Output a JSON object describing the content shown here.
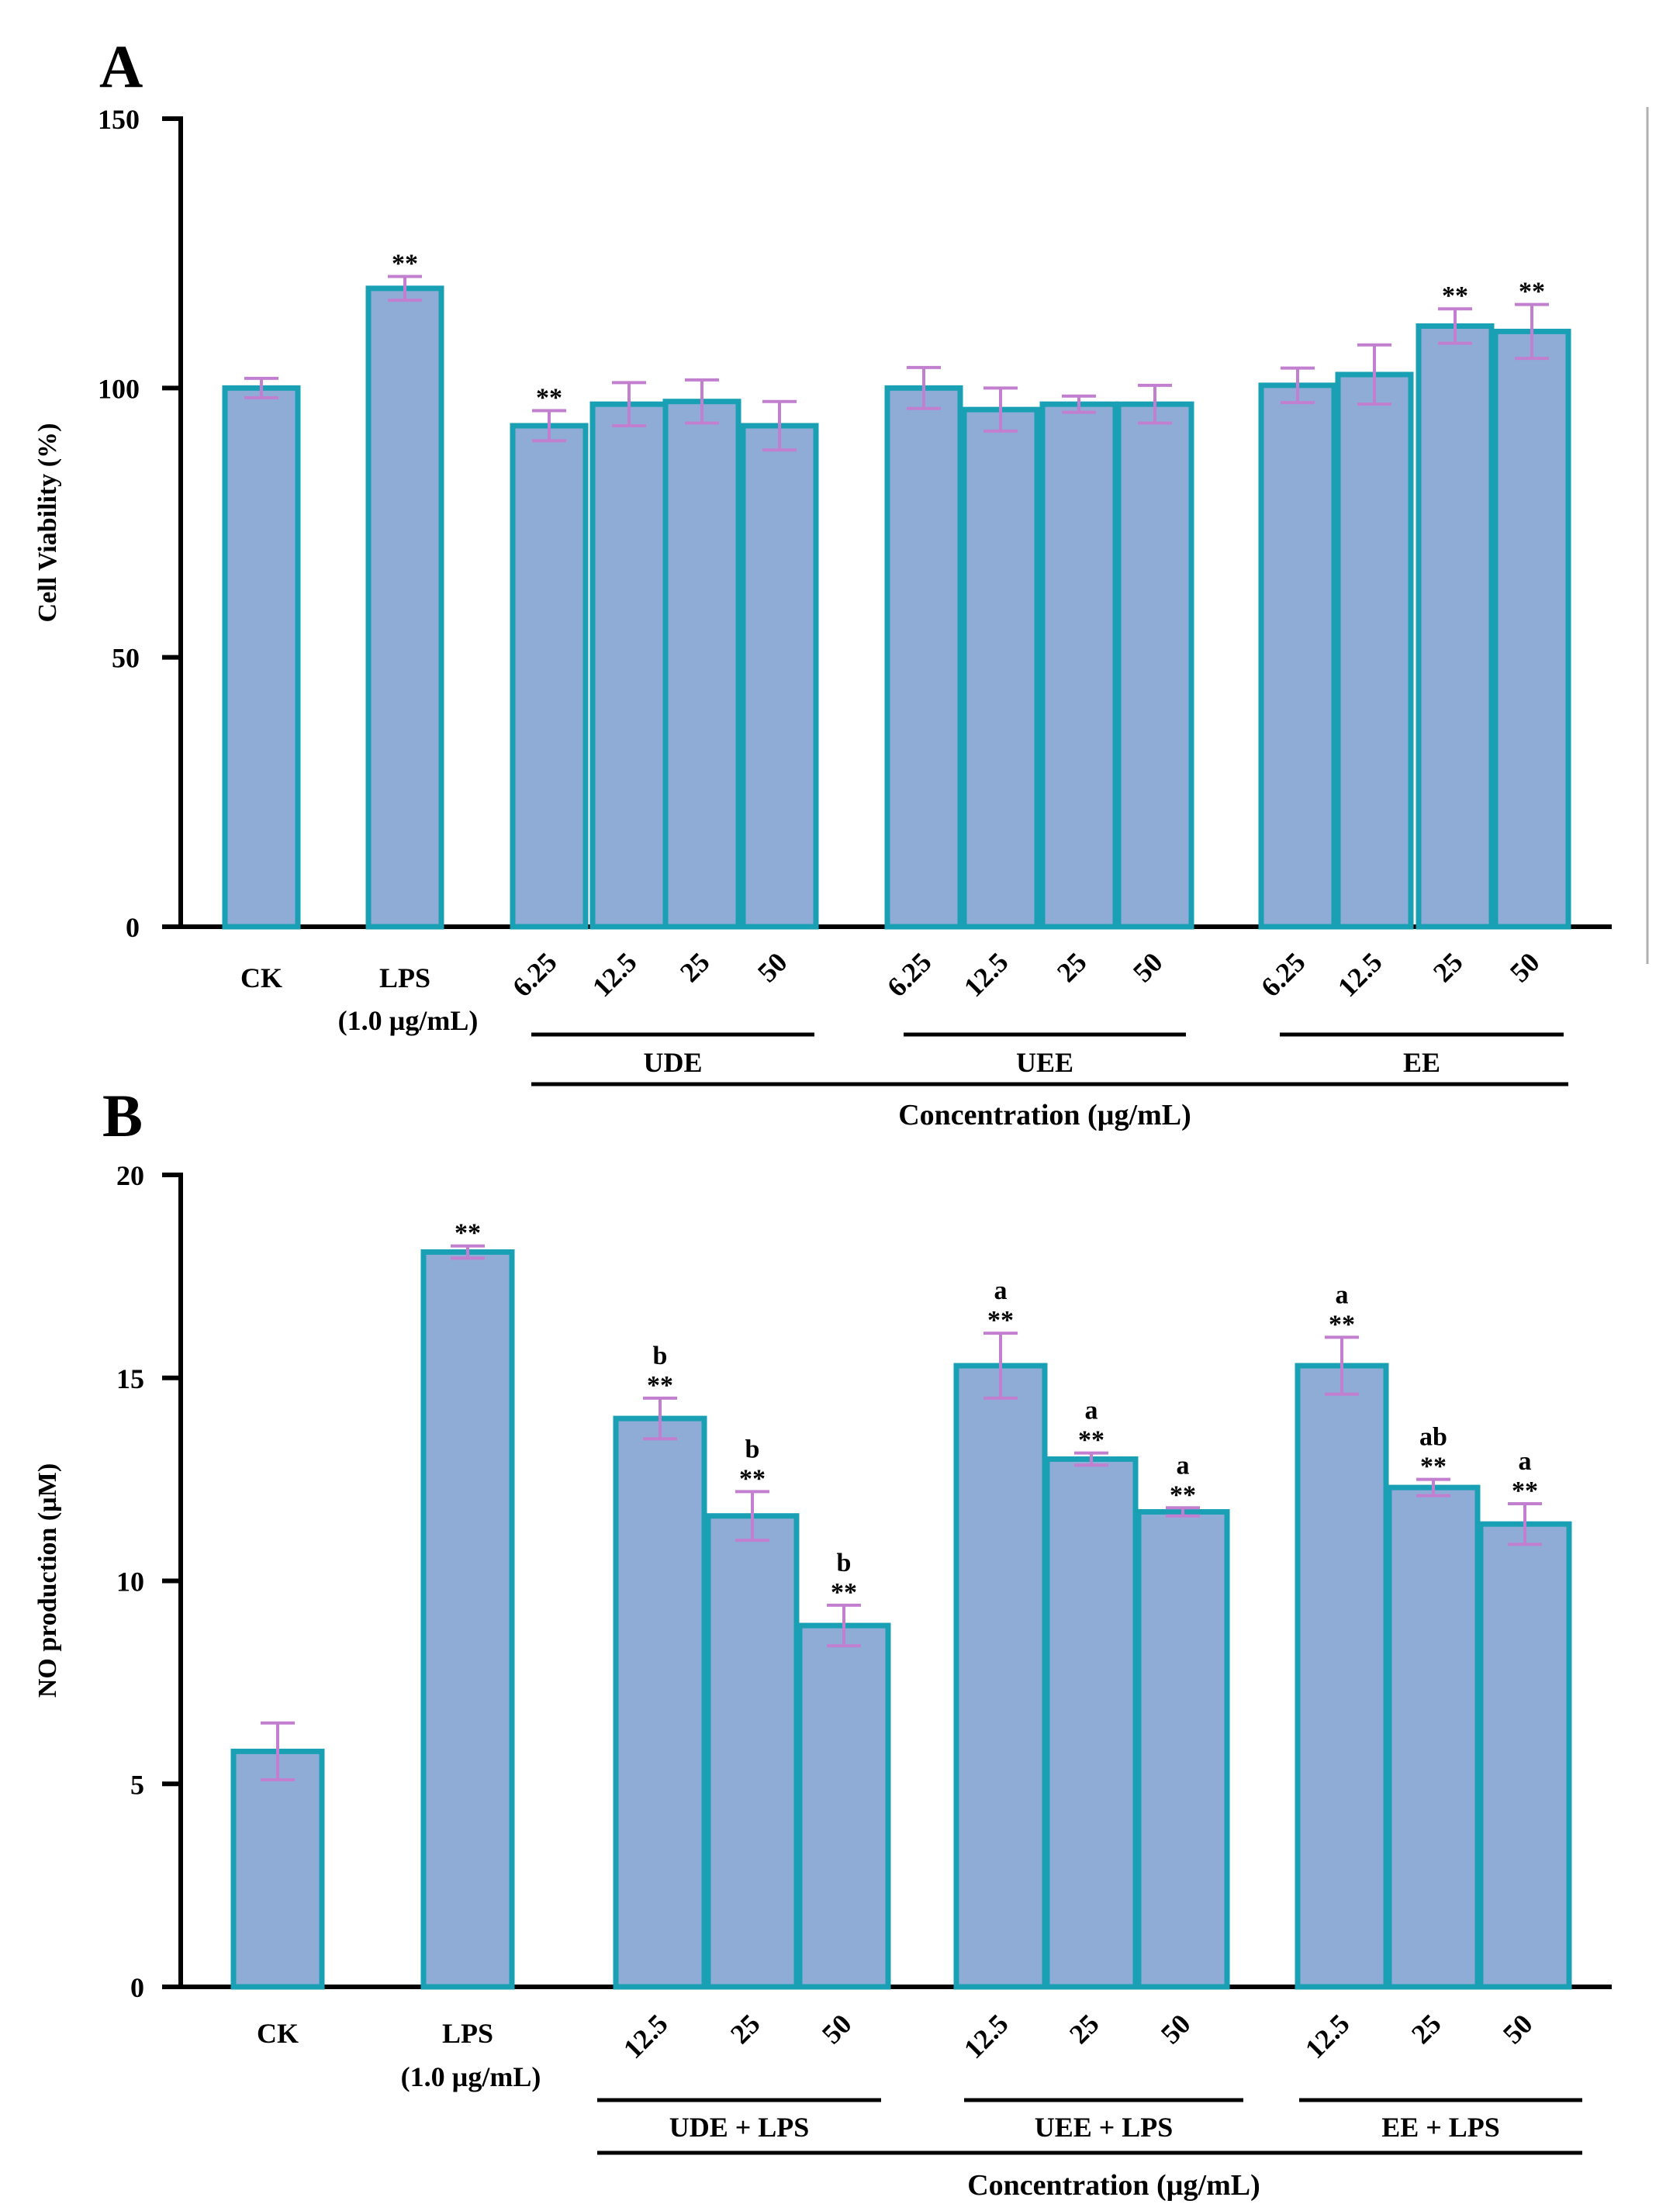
{
  "colors": {
    "bar_fill": "#8eacd6",
    "bar_stroke": "#1aa0b4",
    "error_bar": "#c27fd0",
    "axis": "#000000"
  },
  "chart_data": [
    {
      "panel": "A",
      "type": "bar",
      "ylabel": "Cell Viability (%)",
      "xlabel": "Concentration (µg/mL)",
      "ylim": [
        0,
        150
      ],
      "yticks": [
        "0",
        "50",
        "100",
        "150"
      ],
      "categories": [
        "CK",
        "LPS",
        "6.25",
        "12.5",
        "25",
        "50",
        "6.25",
        "12.5",
        "25",
        "50",
        "6.25",
        "12.5",
        "25",
        "50"
      ],
      "values": [
        100,
        118.5,
        93,
        97,
        97.5,
        93,
        100,
        96,
        97,
        97,
        100.5,
        102.5,
        111.5,
        110.5
      ],
      "errors": [
        1.8,
        2.2,
        2.8,
        4.0,
        4.0,
        4.5,
        3.8,
        4.0,
        1.5,
        3.5,
        3.2,
        5.5,
        3.2,
        5.0
      ],
      "significance": [
        "",
        "**",
        "**",
        "",
        "",
        "",
        "",
        "",
        "",
        "",
        "",
        "",
        "**",
        "**"
      ],
      "letters": [
        "",
        "",
        "",
        "",
        "",
        "",
        "",
        "",
        "",
        "",
        "",
        "",
        "",
        ""
      ],
      "single_labels": [
        {
          "text": "CK"
        },
        {
          "text": "LPS",
          "sub": "(1.0 µg/mL)"
        }
      ],
      "groups": [
        "UDE",
        "UEE",
        "EE"
      ]
    },
    {
      "panel": "B",
      "type": "bar",
      "ylabel": "NO production (µM)",
      "xlabel": "Concentration (µg/mL)",
      "ylim": [
        0,
        20
      ],
      "yticks": [
        "0",
        "5",
        "10",
        "15",
        "20"
      ],
      "categories": [
        "CK",
        "LPS",
        "12.5",
        "25",
        "50",
        "12.5",
        "25",
        "50",
        "12.5",
        "25",
        "50"
      ],
      "values": [
        5.8,
        18.1,
        14.0,
        11.6,
        8.9,
        15.3,
        13.0,
        11.7,
        15.3,
        12.3,
        11.4
      ],
      "errors": [
        0.7,
        0.15,
        0.5,
        0.6,
        0.5,
        0.8,
        0.15,
        0.1,
        0.7,
        0.2,
        0.5
      ],
      "significance": [
        "",
        "**",
        "**",
        "**",
        "**",
        "**",
        "**",
        "**",
        "**",
        "**",
        "**"
      ],
      "letters": [
        "",
        "",
        "b",
        "b",
        "b",
        "a",
        "a",
        "a",
        "a",
        "ab",
        "a"
      ],
      "single_labels": [
        {
          "text": "CK"
        },
        {
          "text": "LPS",
          "sub": "(1.0 µg/mL)"
        }
      ],
      "groups": [
        "UDE + LPS",
        "UEE + LPS",
        "EE + LPS"
      ]
    }
  ],
  "panel_labels": [
    "A",
    "B"
  ]
}
